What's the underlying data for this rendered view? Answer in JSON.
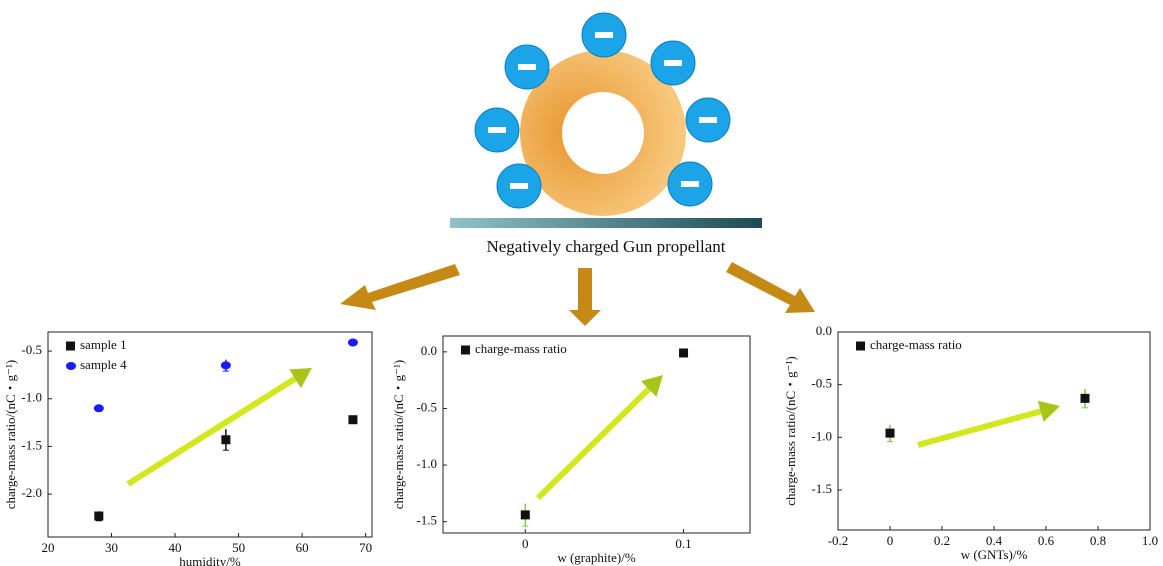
{
  "diagram": {
    "caption": "Negatively charged Gun propellant"
  },
  "chart_data": [
    {
      "type": "scatter",
      "x_label": "humidity/%",
      "y_label": "charge-mass ratio/(nC・g⁻¹)",
      "xlim": [
        20,
        71
      ],
      "xticks": [
        20,
        30,
        40,
        50,
        60,
        70
      ],
      "ylim": [
        -2.45,
        -0.3
      ],
      "yticks": [
        {
          "value": -2,
          "label": "-2.0"
        },
        {
          "value": -1.5,
          "label": "-1.5"
        },
        {
          "value": -1,
          "label": "-1.0"
        },
        {
          "value": -0.5,
          "label": "-0.5"
        }
      ],
      "legend": "upper left",
      "series": [
        {
          "name": "sample 1",
          "color": "#111111",
          "marker": "square",
          "x": [
            28,
            48,
            68
          ],
          "values": [
            -2.23,
            -1.43,
            -1.22
          ],
          "errors": [
            0.05,
            0.11,
            0.03
          ]
        },
        {
          "name": "sample 4",
          "color": "#1a1aff",
          "marker": "circle",
          "x": [
            28,
            48,
            68
          ],
          "values": [
            -1.1,
            -0.65,
            -0.41
          ],
          "errors": [
            0.02,
            0.06,
            0.01
          ]
        }
      ]
    },
    {
      "type": "scatter",
      "x_label": "w (graphite)/%",
      "y_label": "charge-mass ratio/(nC・g⁻¹)",
      "xlim": [
        -0.052,
        0.142
      ],
      "xticks": [
        0,
        0.1
      ],
      "ylim": [
        -1.6,
        0.14
      ],
      "yticks": [
        {
          "value": -1.5,
          "label": "-1.5"
        },
        {
          "value": -1,
          "label": "-1.0"
        },
        {
          "value": -0.5,
          "label": "-0.5"
        },
        {
          "value": 0,
          "label": "0.0"
        }
      ],
      "legend": "upper left",
      "series": [
        {
          "name": "charge-mass ratio",
          "color": "#111111",
          "error_color": "#7ccd3c",
          "marker": "square",
          "x": [
            0,
            0.1
          ],
          "values": [
            -1.44,
            -0.01
          ],
          "errors": [
            0.1,
            0.02
          ]
        }
      ]
    },
    {
      "type": "scatter",
      "x_label": "w (GNTs)/%",
      "y_label": "charge-mass ratio/(nC・g⁻¹)",
      "xlim": [
        -0.2,
        1.0
      ],
      "xticks": [
        -0.2,
        0,
        0.2,
        0.4,
        0.6,
        0.8,
        {
          "value": 1,
          "label": "1.0"
        }
      ],
      "ylim": [
        -1.88,
        0
      ],
      "yticks": [
        {
          "value": -1.5,
          "label": "-1.5"
        },
        {
          "value": -1,
          "label": "-1.0"
        },
        {
          "value": -0.5,
          "label": "-0.5"
        },
        {
          "value": 0,
          "label": "0.0"
        }
      ],
      "legend": "upper left",
      "series": [
        {
          "name": "charge-mass ratio",
          "color": "#111111",
          "error_color": "#7ccd3c",
          "marker": "square",
          "x": [
            0,
            0.75
          ],
          "values": [
            -0.96,
            -0.63
          ],
          "errors": [
            0.08,
            0.09
          ]
        }
      ]
    }
  ]
}
